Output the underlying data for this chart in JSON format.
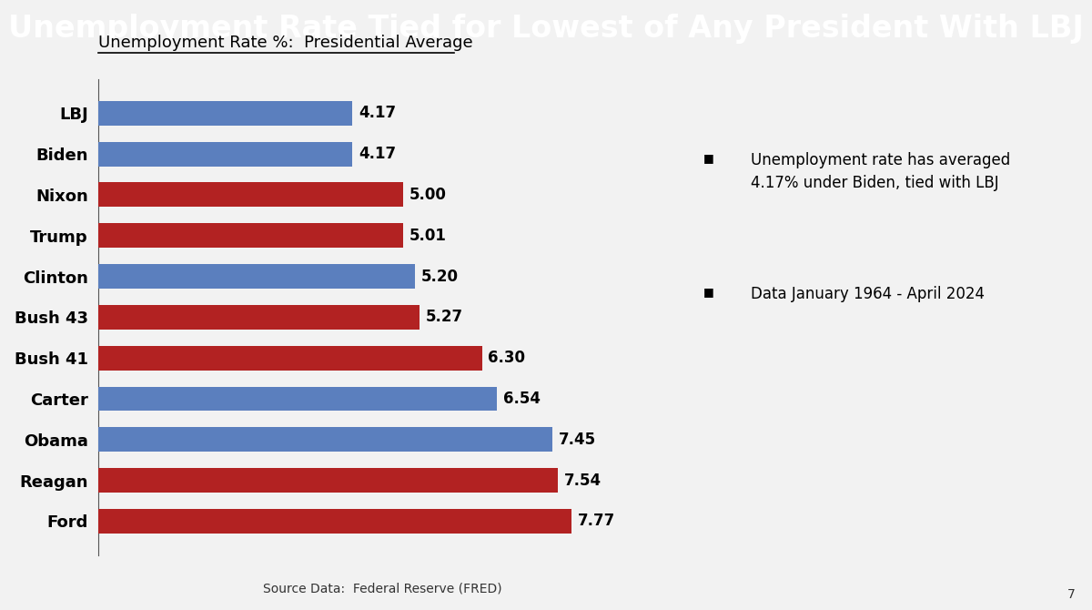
{
  "title": "Unemployment Rate Tied for Lowest of Any President With LBJ",
  "subtitle": "Unemployment Rate %:  Presidential Average",
  "source": "Source Data:  Federal Reserve (FRED)",
  "categories": [
    "LBJ",
    "Biden",
    "Nixon",
    "Trump",
    "Clinton",
    "Bush 43",
    "Bush 41",
    "Carter",
    "Obama",
    "Reagan",
    "Ford"
  ],
  "values": [
    4.17,
    4.17,
    5.0,
    5.01,
    5.2,
    5.27,
    6.3,
    6.54,
    7.45,
    7.54,
    7.77
  ],
  "colors": [
    "#5b7fbe",
    "#5b7fbe",
    "#b22222",
    "#b22222",
    "#5b7fbe",
    "#b22222",
    "#b22222",
    "#5b7fbe",
    "#5b7fbe",
    "#b22222",
    "#b22222"
  ],
  "title_bg_color": "#0d2a5e",
  "title_text_color": "#ffffff",
  "title_fontsize": 24,
  "subtitle_fontsize": 13,
  "bar_label_fontsize": 12,
  "annotation1": "Unemployment rate has averaged\n4.17% under Biden, tied with LBJ",
  "annotation2": "Data January 1964 - April 2024",
  "bg_color": "#f2f2f2",
  "xlim": [
    0,
    9.5
  ],
  "page_number": "7"
}
